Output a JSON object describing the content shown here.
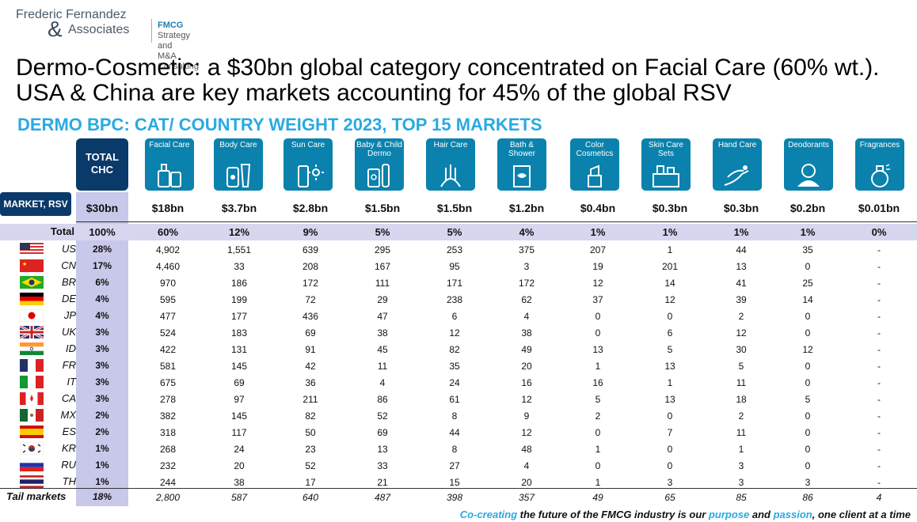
{
  "logo": {
    "line1": "Frederic Fernandez",
    "amp": "&",
    "line2": "Associates",
    "sub1": "FMCG",
    "sub1b": " Strategy and",
    "sub2": "M&A Consulting"
  },
  "headline": "Dermo-Cosmetic: a $30bn global category concentrated on Facial Care (60% wt.). USA & China are key markets accounting for 45% of the global RSV",
  "subhead": "DERMO BPC: CAT/ COUNTRY WEIGHT 2023, TOP 15 MARKETS",
  "total_header": "TOTAL CHC",
  "market_header": "MARKET, RSV",
  "total_rsv": "$30bn",
  "categories": [
    {
      "label": "Facial Care",
      "icon": "facial-care-icon",
      "rsv": "$18bn",
      "share": "60%"
    },
    {
      "label": "Body Care",
      "icon": "body-care-icon",
      "rsv": "$3.7bn",
      "share": "12%"
    },
    {
      "label": "Sun Care",
      "icon": "sun-care-icon",
      "rsv": "$2.8bn",
      "share": "9%"
    },
    {
      "label": "Baby & Child Dermo",
      "icon": "baby-dermo-icon",
      "rsv": "$1.5bn",
      "share": "5%"
    },
    {
      "label": "Hair Care",
      "icon": "hair-care-icon",
      "rsv": "$1.5bn",
      "share": "5%"
    },
    {
      "label": "Bath & Shower",
      "icon": "bath-shower-icon",
      "rsv": "$1.2bn",
      "share": "4%"
    },
    {
      "label": "Color Cosmetics",
      "icon": "lipstick-icon",
      "rsv": "$0.4bn",
      "share": "1%"
    },
    {
      "label": "Skin Care Sets",
      "icon": "skin-care-sets-icon",
      "rsv": "$0.3bn",
      "share": "1%"
    },
    {
      "label": "Hand Care",
      "icon": "hand-care-icon",
      "rsv": "$0.3bn",
      "share": "1%"
    },
    {
      "label": "Deodorants",
      "icon": "deodorant-icon",
      "rsv": "$0.2bn",
      "share": "1%"
    },
    {
      "label": "Fragrances",
      "icon": "fragrance-icon",
      "rsv": "$0.01bn",
      "share": "0%"
    }
  ],
  "total_row": {
    "label": "Total",
    "share": "100%"
  },
  "rows": [
    {
      "code": "US",
      "share": "28%",
      "flag": "us-flag",
      "values": [
        "4,902",
        "1,551",
        "639",
        "295",
        "253",
        "375",
        "207",
        "1",
        "44",
        "35",
        "-"
      ]
    },
    {
      "code": "CN",
      "share": "17%",
      "flag": "cn-flag",
      "values": [
        "4,460",
        "33",
        "208",
        "167",
        "95",
        "3",
        "19",
        "201",
        "13",
        "0",
        "-"
      ]
    },
    {
      "code": "BR",
      "share": "6%",
      "flag": "br-flag",
      "values": [
        "970",
        "186",
        "172",
        "111",
        "171",
        "172",
        "12",
        "14",
        "41",
        "25",
        "-"
      ]
    },
    {
      "code": "DE",
      "share": "4%",
      "flag": "de-flag",
      "values": [
        "595",
        "199",
        "72",
        "29",
        "238",
        "62",
        "37",
        "12",
        "39",
        "14",
        "-"
      ]
    },
    {
      "code": "JP",
      "share": "4%",
      "flag": "jp-flag",
      "values": [
        "477",
        "177",
        "436",
        "47",
        "6",
        "4",
        "0",
        "0",
        "2",
        "0",
        "-"
      ]
    },
    {
      "code": "UK",
      "share": "3%",
      "flag": "uk-flag",
      "values": [
        "524",
        "183",
        "69",
        "38",
        "12",
        "38",
        "0",
        "6",
        "12",
        "0",
        "-"
      ]
    },
    {
      "code": "ID",
      "share": "3%",
      "flag": "in-flag",
      "values": [
        "422",
        "131",
        "91",
        "45",
        "82",
        "49",
        "13",
        "5",
        "30",
        "12",
        "-"
      ]
    },
    {
      "code": "FR",
      "share": "3%",
      "flag": "fr-flag",
      "values": [
        "581",
        "145",
        "42",
        "11",
        "35",
        "20",
        "1",
        "13",
        "5",
        "0",
        "-"
      ]
    },
    {
      "code": "IT",
      "share": "3%",
      "flag": "it-flag",
      "values": [
        "675",
        "69",
        "36",
        "4",
        "24",
        "16",
        "16",
        "1",
        "11",
        "0",
        "-"
      ]
    },
    {
      "code": "CA",
      "share": "3%",
      "flag": "ca-flag",
      "values": [
        "278",
        "97",
        "211",
        "86",
        "61",
        "12",
        "5",
        "13",
        "18",
        "5",
        "-"
      ]
    },
    {
      "code": "MX",
      "share": "2%",
      "flag": "mx-flag",
      "values": [
        "382",
        "145",
        "82",
        "52",
        "8",
        "9",
        "2",
        "0",
        "2",
        "0",
        "-"
      ]
    },
    {
      "code": "ES",
      "share": "2%",
      "flag": "es-flag",
      "values": [
        "318",
        "117",
        "50",
        "69",
        "44",
        "12",
        "0",
        "7",
        "11",
        "0",
        "-"
      ]
    },
    {
      "code": "KR",
      "share": "1%",
      "flag": "kr-flag",
      "values": [
        "268",
        "24",
        "23",
        "13",
        "8",
        "48",
        "1",
        "0",
        "1",
        "0",
        "-"
      ]
    },
    {
      "code": "RU",
      "share": "1%",
      "flag": "ru-flag",
      "values": [
        "232",
        "20",
        "52",
        "33",
        "27",
        "4",
        "0",
        "0",
        "3",
        "0",
        "-"
      ]
    },
    {
      "code": "TH",
      "share": "1%",
      "flag": "th-flag",
      "values": [
        "244",
        "38",
        "17",
        "21",
        "15",
        "20",
        "1",
        "3",
        "3",
        "3",
        "-"
      ]
    }
  ],
  "tail": {
    "label": "Tail markets",
    "share": "18%",
    "values": [
      "2,800",
      "587",
      "640",
      "487",
      "398",
      "357",
      "49",
      "65",
      "85",
      "86",
      "4"
    ]
  },
  "footer": {
    "p1": "Co-creating",
    "p2": " the future of the FMCG industry is our ",
    "p3": "purpose",
    "p4": " and ",
    "p5": "passion",
    "p6": ", one client at a time"
  },
  "colors": {
    "header_blue": "#0a82ad",
    "dark_navy": "#0a3a6a",
    "accent_cyan": "#29aae1",
    "band": "#c8c8ea"
  }
}
